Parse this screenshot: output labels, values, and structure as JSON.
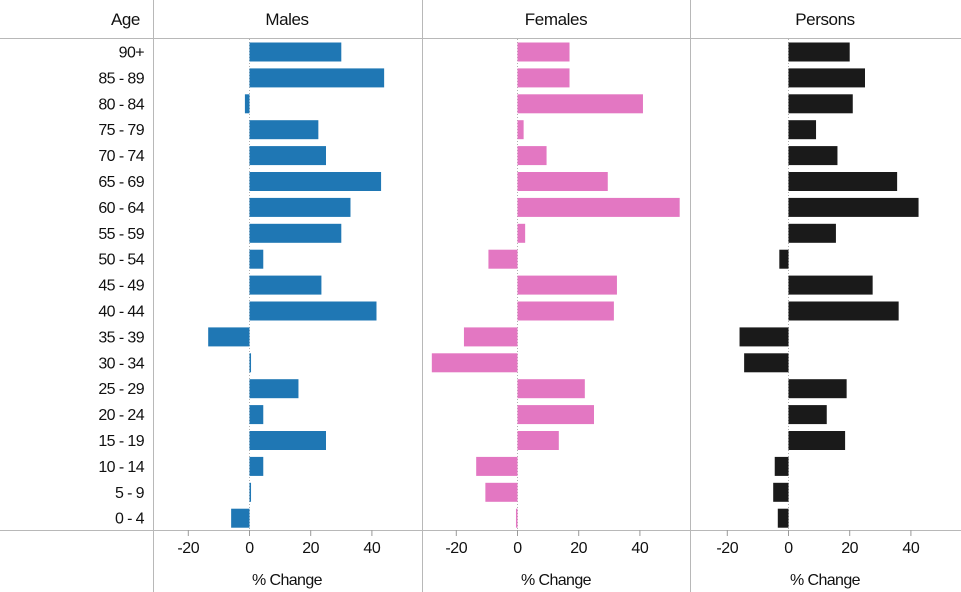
{
  "chart_data": {
    "type": "bar",
    "orientation": "horizontal",
    "categories": [
      "90+",
      "85 - 89",
      "80 - 84",
      "75 - 79",
      "70 - 74",
      "65 - 69",
      "60 - 64",
      "55 - 59",
      "50 - 54",
      "45 - 49",
      "40 - 44",
      "35 - 39",
      "30 - 34",
      "25 - 29",
      "20 - 24",
      "15 - 19",
      "10 - 14",
      "5 - 9",
      "0 - 4"
    ],
    "category_header": "Age",
    "xlabel": "% Change",
    "xlim": [
      -31,
      55
    ],
    "xticks": [
      -20,
      0,
      20,
      40
    ],
    "xtick_labels": [
      "-20",
      "0",
      "20",
      "40"
    ],
    "grid": false,
    "series": [
      {
        "name": "Males",
        "color": "#1f77b4",
        "values": [
          30,
          44,
          -1.5,
          22.5,
          25,
          43,
          33,
          30,
          4.5,
          23.5,
          41.5,
          -13.5,
          0.5,
          16,
          4.5,
          25,
          4.5,
          0.5,
          -6
        ]
      },
      {
        "name": "Females",
        "color": "#e377c2",
        "values": [
          17,
          17,
          41,
          2,
          9.5,
          29.5,
          53,
          2.5,
          -9.5,
          32.5,
          31.5,
          -17.5,
          -28,
          22,
          25,
          13.5,
          -13.5,
          -10.5,
          -0.5
        ]
      },
      {
        "name": "Persons",
        "color": "#1a1a1a",
        "values": [
          20,
          25,
          21,
          9,
          16,
          35.5,
          42.5,
          15.5,
          -3,
          27.5,
          36,
          -16,
          -14.5,
          19,
          12.5,
          18.5,
          -4.5,
          -5,
          -3.5
        ]
      }
    ]
  }
}
